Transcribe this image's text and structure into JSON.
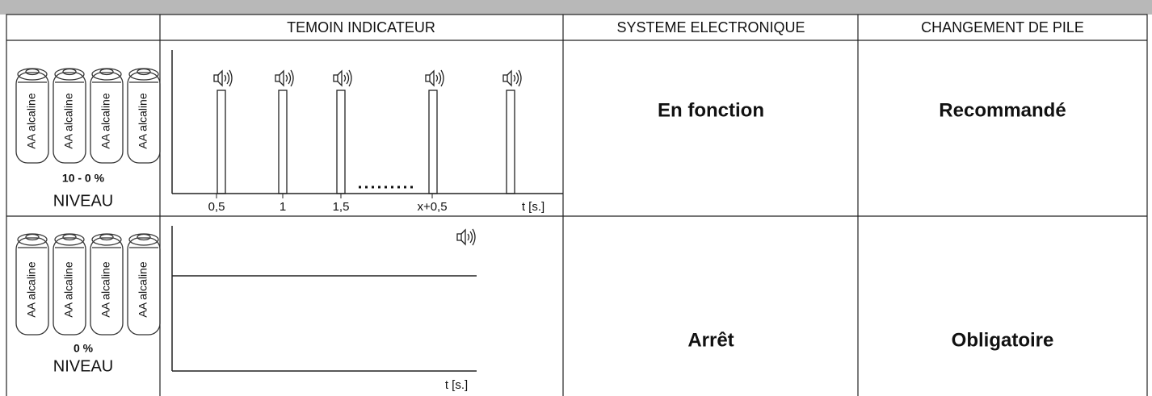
{
  "table": {
    "headers": [
      "TEMOIN INDICATEUR",
      "SYSTEME ELECTRONIQUE",
      "CHANGEMENT DE PILE"
    ],
    "rows": [
      {
        "battery_label": "AA alcaline",
        "level": "10 - 0 %",
        "level_caption": "NIVEAU",
        "diagram": {
          "ticks": [
            "0,5",
            "1",
            "1,5",
            "x+0,5"
          ],
          "axis_label": "t [s.]"
        },
        "system": "En fonction",
        "battery_change": "Recommandé"
      },
      {
        "battery_label": "AA alcaline",
        "level": "0 %",
        "level_caption": "NIVEAU",
        "diagram": {
          "axis_label": "t [s.]"
        },
        "system": "Arrêt",
        "battery_change": "Obligatoire"
      }
    ]
  }
}
